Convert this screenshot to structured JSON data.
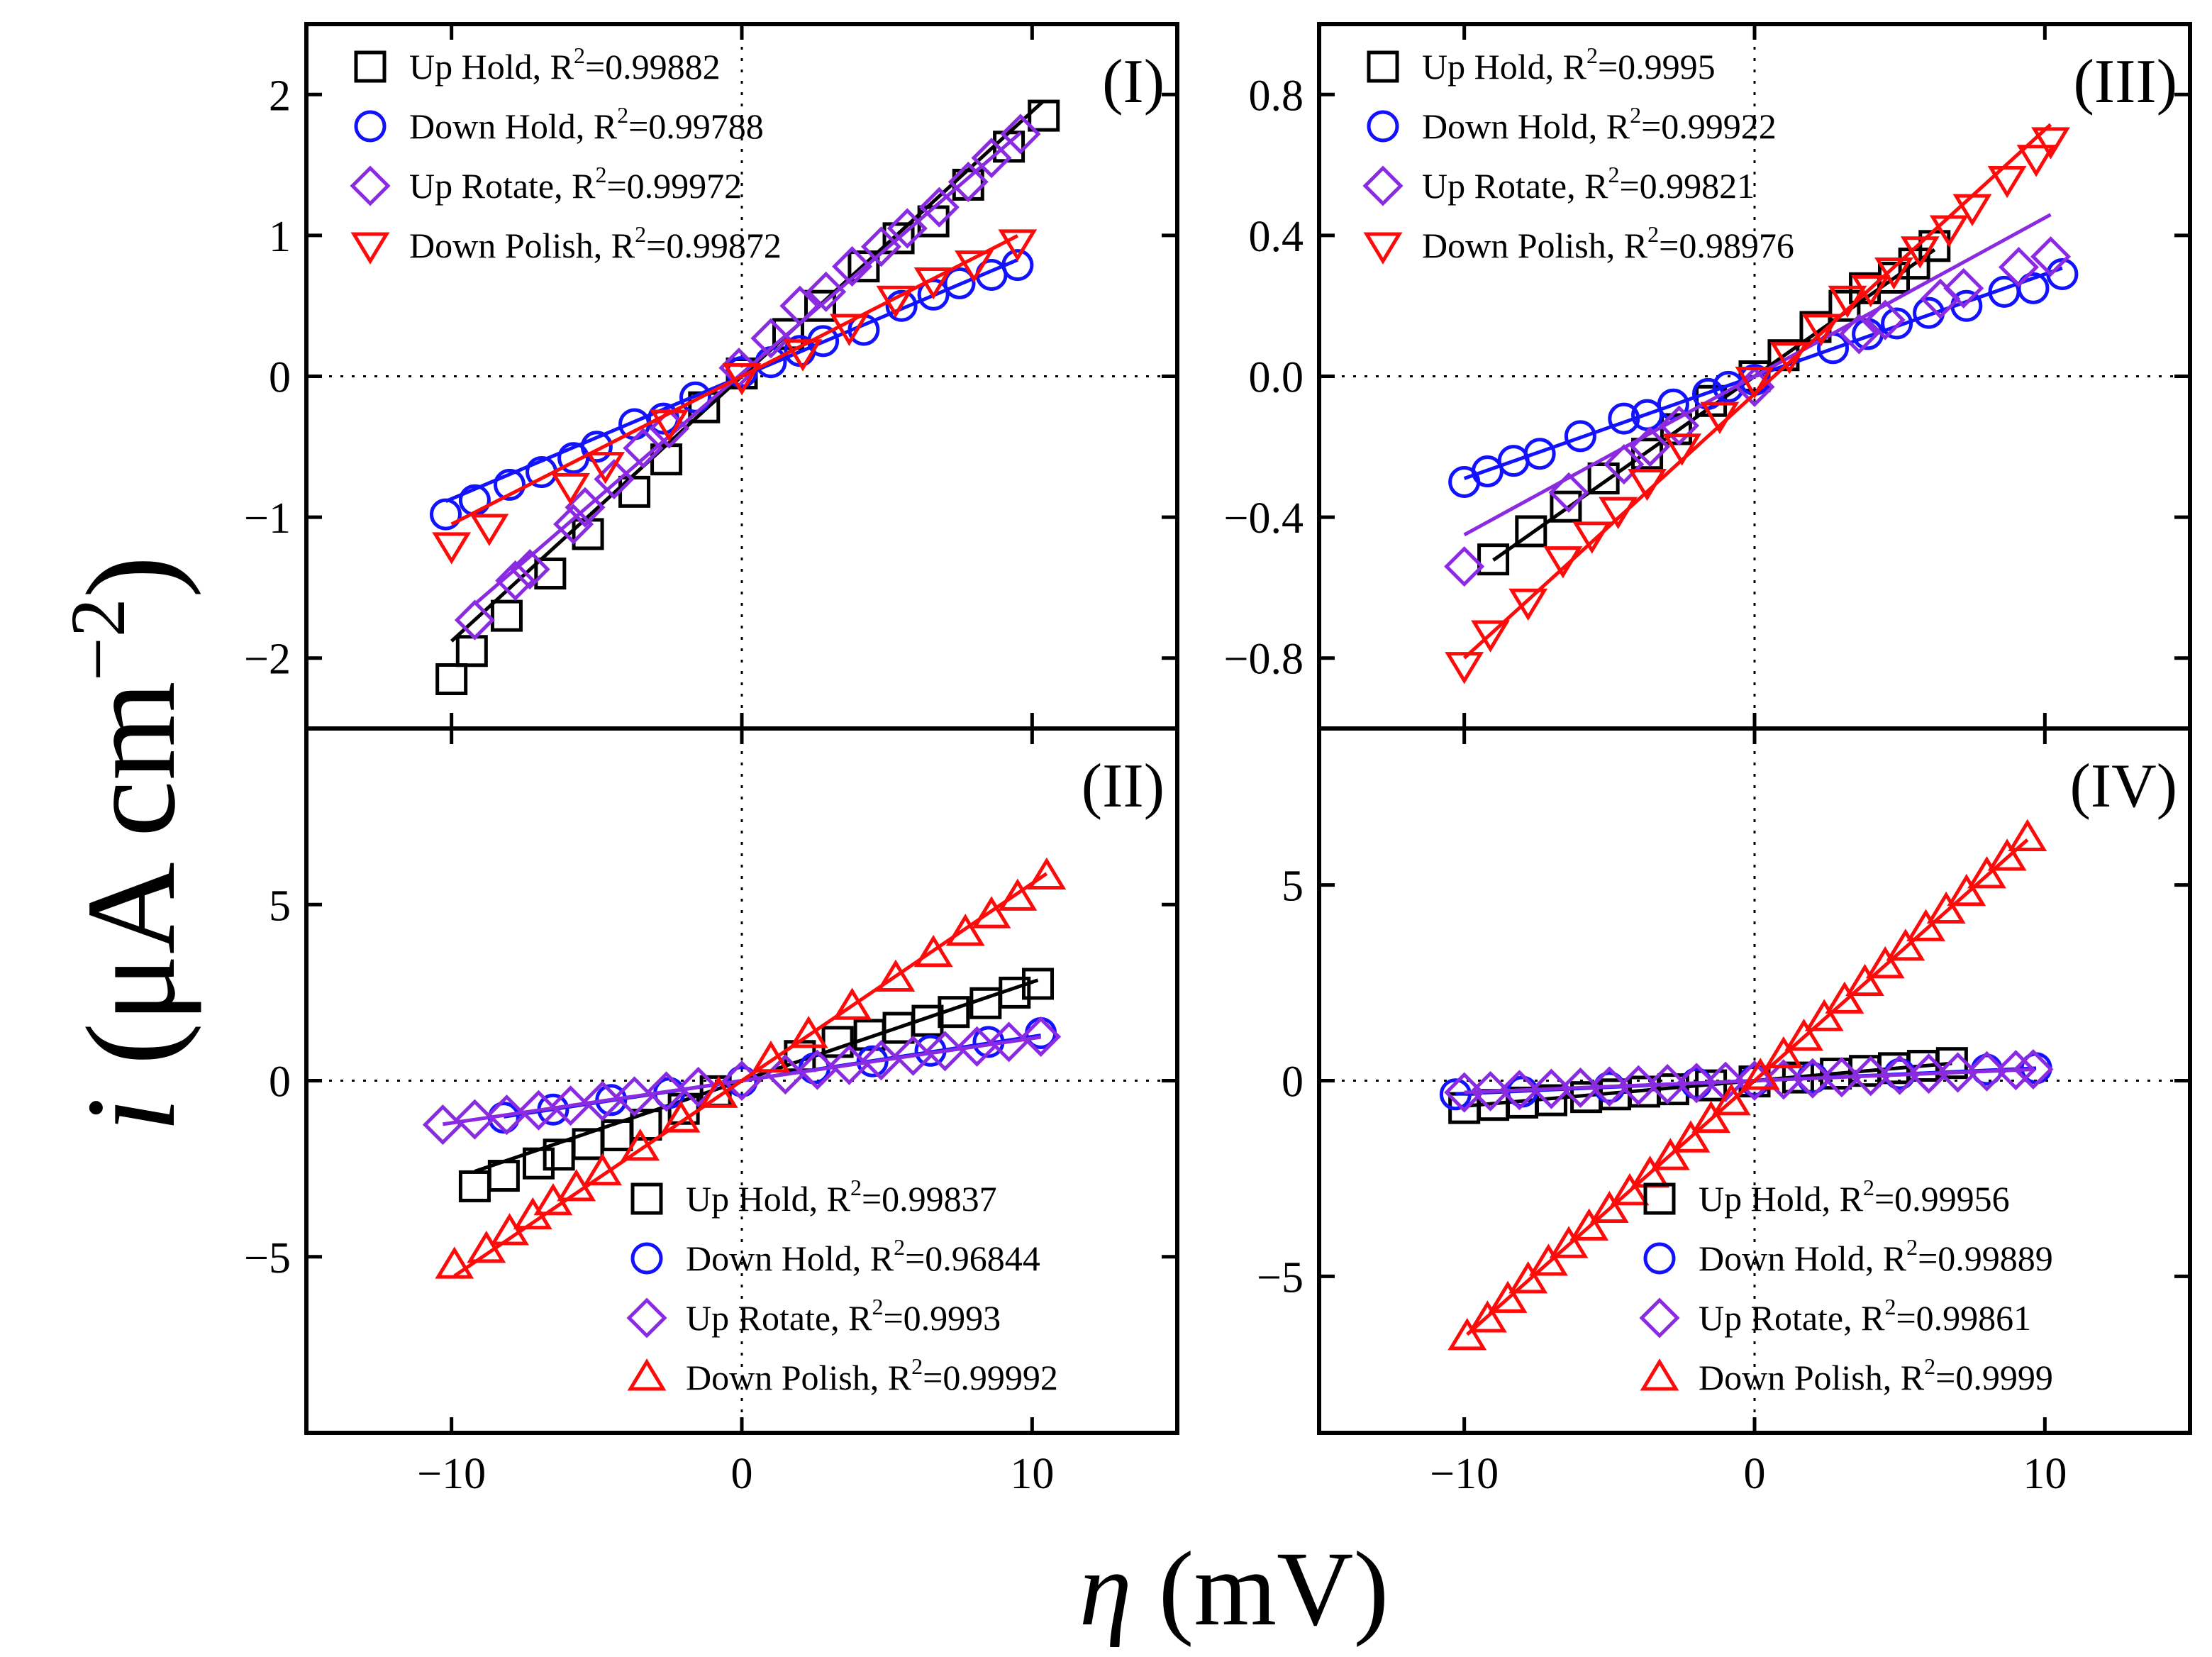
{
  "figure": {
    "ylabel_italic": "i",
    "ylabel_rest": " (μA cm",
    "ylabel_sup": "−2",
    "ylabel_close": ")",
    "xlabel_italic": "η",
    "xlabel_rest": " (mV)"
  },
  "colors": {
    "Up Hold": "#000000",
    "Down Hold": "#1212ff",
    "Up Rotate": "#8a2be2",
    "Down Polish": "#ff0a0a"
  },
  "chart_data": [
    {
      "type": "scatter",
      "panel_label": "(I)",
      "xlim": [
        -15,
        15
      ],
      "ylim": [
        -2.5,
        2.5
      ],
      "xticks": [
        -10,
        0,
        10
      ],
      "xtick_labels": [
        "−10",
        "0",
        "10"
      ],
      "yticks": [
        -2,
        -1,
        0,
        1,
        2
      ],
      "ytick_labels": [
        "−2",
        "−1",
        "0",
        "1",
        "2"
      ],
      "legend_position": "top-left",
      "series": [
        {
          "name": "Up Hold",
          "r2_prefix": "Up Hold, R",
          "r2_value": "=0.99882",
          "marker": "square",
          "color": "#000000",
          "x": [
            -10,
            -9.3,
            -8.1,
            -6.6,
            -5.3,
            -3.7,
            -2.6,
            -1.3,
            0,
            1.6,
            2.7,
            4.2,
            5.4,
            6.6,
            7.8,
            9.2,
            10.4
          ],
          "y": [
            -2.15,
            -1.95,
            -1.7,
            -1.4,
            -1.12,
            -0.82,
            -0.59,
            -0.22,
            0.02,
            0.3,
            0.5,
            0.78,
            0.98,
            1.1,
            1.36,
            1.63,
            1.85
          ],
          "fit_slope": 0.188,
          "fit_intercept": 0.0
        },
        {
          "name": "Down Hold",
          "r2_prefix": "Down Hold, R",
          "r2_value": "=0.99788",
          "marker": "circle",
          "color": "#1212ff",
          "x": [
            -10.2,
            -9.2,
            -8,
            -6.9,
            -5.8,
            -5,
            -3.7,
            -2.7,
            -1.6,
            0,
            1,
            2,
            2.8,
            4.2,
            5.5,
            6.6,
            7.5,
            8.6,
            9.5
          ],
          "y": [
            -0.98,
            -0.88,
            -0.77,
            -0.68,
            -0.58,
            -0.5,
            -0.34,
            -0.3,
            -0.15,
            0.03,
            0.1,
            0.18,
            0.25,
            0.33,
            0.5,
            0.58,
            0.66,
            0.72,
            0.79
          ],
          "fit_slope": 0.087,
          "fit_intercept": 0.0
        },
        {
          "name": "Up Rotate",
          "r2_prefix": "Up Rotate, R",
          "r2_value": "=0.99972",
          "marker": "diamond",
          "color": "#8a2be2",
          "x": [
            -9.2,
            -7.8,
            -7.3,
            -5.8,
            -5.4,
            -4.4,
            -3.4,
            -2.5,
            -0.1,
            1,
            2,
            2.9,
            3.8,
            4.8,
            5.7,
            6.8,
            7.8,
            8.6,
            9.6
          ],
          "y": [
            -1.73,
            -1.45,
            -1.37,
            -1.05,
            -0.93,
            -0.73,
            -0.51,
            -0.37,
            0.06,
            0.27,
            0.5,
            0.6,
            0.78,
            0.92,
            1.05,
            1.2,
            1.38,
            1.55,
            1.72
          ],
          "fit_slope": 0.178,
          "fit_intercept": 0.02
        },
        {
          "name": "Down Polish",
          "r2_prefix": "Down Polish, R",
          "r2_value": "=0.99872",
          "marker": "triangle-down",
          "color": "#ff0a0a",
          "x": [
            -10,
            -8.7,
            -5.9,
            -4.7,
            -2.5,
            0,
            2.1,
            3.7,
            5.3,
            6.6,
            8,
            9.5
          ],
          "y": [
            -1.2,
            -1.07,
            -0.78,
            -0.63,
            -0.33,
            0.0,
            0.17,
            0.35,
            0.55,
            0.68,
            0.8,
            0.95
          ],
          "fit_slope": 0.105,
          "fit_intercept": 0.0
        }
      ]
    },
    {
      "type": "scatter",
      "panel_label": "(II)",
      "xlim": [
        -15,
        15
      ],
      "ylim": [
        -10,
        10
      ],
      "xticks": [
        -10,
        0,
        10
      ],
      "xtick_labels": [
        "−10",
        "0",
        "10"
      ],
      "yticks": [
        -5,
        0,
        5
      ],
      "ytick_labels": [
        "−5",
        "0",
        "5"
      ],
      "legend_position": "bottom-right",
      "series": [
        {
          "name": "Up Hold",
          "r2_prefix": "Up Hold, R",
          "r2_value": "=0.99837",
          "marker": "square",
          "color": "#000000",
          "x": [
            -9.2,
            -8.2,
            -7,
            -6.3,
            -5.3,
            -4.3,
            -3.3,
            -2,
            -0.9,
            2,
            3.3,
            4.4,
            5.4,
            6.4,
            7.3,
            8.4,
            9.4,
            10.2
          ],
          "y": [
            -3.0,
            -2.7,
            -2.35,
            -2.1,
            -1.8,
            -1.55,
            -1.25,
            -0.8,
            -0.3,
            0.7,
            1.1,
            1.3,
            1.5,
            1.7,
            1.95,
            2.2,
            2.5,
            2.75
          ],
          "fit_slope": 0.28,
          "fit_intercept": 0.0
        },
        {
          "name": "Down Hold",
          "r2_prefix": "Down Hold, R",
          "r2_value": "=0.96844",
          "marker": "circle",
          "color": "#1212ff",
          "x": [
            -8.2,
            -6.5,
            -4.5,
            -2.5,
            0,
            2.5,
            4.5,
            6.5,
            8.5,
            10.3
          ],
          "y": [
            -1.05,
            -0.82,
            -0.55,
            -0.35,
            -0.02,
            0.35,
            0.55,
            0.85,
            1.1,
            1.35
          ],
          "fit_slope": 0.125,
          "fit_intercept": 0.0
        },
        {
          "name": "Up Rotate",
          "r2_prefix": "Up Rotate, R",
          "r2_value": "=0.9993",
          "marker": "diamond",
          "color": "#8a2be2",
          "x": [
            -10.3,
            -9.2,
            -8.1,
            -7,
            -5.9,
            -4.8,
            -3.7,
            -2.6,
            -1.5,
            0,
            1.5,
            2.6,
            3.7,
            4.8,
            5.9,
            7,
            8.1,
            9.2,
            10.3
          ],
          "y": [
            -1.25,
            -1.1,
            -0.97,
            -0.84,
            -0.71,
            -0.58,
            -0.45,
            -0.31,
            -0.18,
            0.0,
            0.18,
            0.31,
            0.45,
            0.58,
            0.71,
            0.84,
            0.97,
            1.1,
            1.25
          ],
          "fit_slope": 0.12,
          "fit_intercept": 0.0
        },
        {
          "name": "Down Polish",
          "r2_prefix": "Down Polish, R",
          "r2_value": "=0.99992",
          "marker": "triangle-up",
          "color": "#ff0a0a",
          "x": [
            -9.9,
            -8.8,
            -8,
            -7.2,
            -6.5,
            -5.7,
            -4.8,
            -3.5,
            -2.1,
            -0.8,
            1,
            2.3,
            3.8,
            5.3,
            6.6,
            7.7,
            8.6,
            9.5,
            10.5
          ],
          "y": [
            -5.25,
            -4.8,
            -4.3,
            -3.85,
            -3.45,
            -3.05,
            -2.6,
            -1.9,
            -1.1,
            -0.4,
            0.6,
            1.3,
            2.1,
            2.9,
            3.6,
            4.2,
            4.7,
            5.2,
            5.8
          ],
          "fit_slope": 0.56,
          "fit_intercept": 0.0
        }
      ]
    },
    {
      "type": "scatter",
      "panel_label": "(III)",
      "xlim": [
        -15,
        15
      ],
      "ylim": [
        -1.0,
        1.0
      ],
      "xticks": [
        -10,
        0,
        10
      ],
      "xtick_labels": [
        "−10",
        "0",
        "10"
      ],
      "yticks": [
        -0.8,
        -0.4,
        0.0,
        0.4,
        0.8
      ],
      "ytick_labels": [
        "−0.8",
        "−0.4",
        "0.0",
        "0.4",
        "0.8"
      ],
      "legend_position": "top-left",
      "series": [
        {
          "name": "Up Hold",
          "r2_prefix": "Up Hold, R",
          "r2_value": "=0.9995",
          "marker": "square",
          "color": "#000000",
          "x": [
            -9,
            -7.7,
            -6.5,
            -5.2,
            -3.7,
            -2.7,
            -1.5,
            0,
            1,
            2.1,
            3.1,
            3.8,
            4.8,
            5.5,
            6.2
          ],
          "y": [
            -0.52,
            -0.44,
            -0.37,
            -0.29,
            -0.22,
            -0.15,
            -0.07,
            0.0,
            0.06,
            0.14,
            0.2,
            0.25,
            0.28,
            0.32,
            0.37
          ],
          "fit_slope": 0.058,
          "fit_intercept": 0.0
        },
        {
          "name": "Down Hold",
          "r2_prefix": "Down Hold, R",
          "r2_value": "=0.99922",
          "marker": "circle",
          "color": "#1212ff",
          "x": [
            -10,
            -9.2,
            -8.3,
            -7.4,
            -6,
            -4.5,
            -3.7,
            -2.8,
            -1.6,
            -0.9,
            0,
            2.7,
            3.9,
            4.9,
            6,
            7.3,
            8.6,
            9.6,
            10.6
          ],
          "y": [
            -0.3,
            -0.27,
            -0.24,
            -0.22,
            -0.17,
            -0.12,
            -0.11,
            -0.08,
            -0.05,
            -0.03,
            -0.01,
            0.08,
            0.12,
            0.15,
            0.18,
            0.2,
            0.24,
            0.25,
            0.29
          ],
          "fit_slope": 0.029,
          "fit_intercept": 0.0
        },
        {
          "name": "Up Rotate",
          "r2_prefix": "Up Rotate, R",
          "r2_value": "=0.99821",
          "marker": "diamond",
          "color": "#8a2be2",
          "x": [
            -10,
            -6.4,
            -4.5,
            -3.6,
            -2.6,
            0,
            3.6,
            4.5,
            6.4,
            7.2,
            9.1,
            10.2
          ],
          "y": [
            -0.54,
            -0.33,
            -0.25,
            -0.2,
            -0.14,
            -0.03,
            0.12,
            0.16,
            0.22,
            0.25,
            0.31,
            0.34
          ],
          "fit_slope": 0.045,
          "fit_intercept": 0.0
        },
        {
          "name": "Down Polish",
          "r2_prefix": "Down Polish, R",
          "r2_value": "=0.98976",
          "marker": "triangle-down",
          "color": "#ff0a0a",
          "x": [
            -10,
            -9.1,
            -7.8,
            -6.6,
            -5.6,
            -4.7,
            -3.7,
            -2.5,
            -1.2,
            0,
            1.2,
            2.3,
            3.2,
            4,
            4.8,
            5.7,
            6.7,
            7.5,
            8.7,
            9.7,
            10.2
          ],
          "y": [
            -0.82,
            -0.73,
            -0.64,
            -0.52,
            -0.45,
            -0.38,
            -0.3,
            -0.2,
            -0.11,
            -0.01,
            0.06,
            0.14,
            0.22,
            0.25,
            0.3,
            0.36,
            0.42,
            0.48,
            0.56,
            0.62,
            0.67
          ],
          "fit_slope": 0.075,
          "fit_intercept": -0.05
        }
      ]
    },
    {
      "type": "scatter",
      "panel_label": "(IV)",
      "xlim": [
        -15,
        15
      ],
      "ylim": [
        -9,
        9
      ],
      "xticks": [
        -10,
        0,
        10
      ],
      "xtick_labels": [
        "−10",
        "0",
        "10"
      ],
      "yticks": [
        -5,
        0,
        5
      ],
      "ytick_labels": [
        "−5",
        "0",
        "5"
      ],
      "legend_position": "bottom-right",
      "series": [
        {
          "name": "Up Hold",
          "r2_prefix": "Up Hold, R",
          "r2_value": "=0.99956",
          "marker": "square",
          "color": "#000000",
          "x": [
            -10,
            -9,
            -8,
            -7,
            -5.8,
            -4.8,
            -3.8,
            -2.8,
            -1.5,
            0,
            1.5,
            2.8,
            3.8,
            4.8,
            5.8,
            6.8
          ],
          "y": [
            -0.7,
            -0.62,
            -0.56,
            -0.5,
            -0.42,
            -0.35,
            -0.28,
            -0.22,
            -0.12,
            -0.02,
            0.08,
            0.18,
            0.25,
            0.32,
            0.38,
            0.45
          ],
          "fit_slope": 0.065,
          "fit_intercept": 0.0
        },
        {
          "name": "Down Hold",
          "r2_prefix": "Down Hold, R",
          "r2_value": "=0.99889",
          "marker": "circle",
          "color": "#1212ff",
          "x": [
            -10.3,
            -8,
            -5,
            -2,
            0,
            2,
            5,
            8,
            9.7
          ],
          "y": [
            -0.35,
            -0.28,
            -0.17,
            -0.07,
            0.0,
            0.07,
            0.17,
            0.28,
            0.32
          ],
          "fit_slope": 0.033,
          "fit_intercept": 0.0
        },
        {
          "name": "Up Rotate",
          "r2_prefix": "Up Rotate, R",
          "r2_value": "=0.99861",
          "marker": "diamond",
          "color": "#8a2be2",
          "x": [
            -10,
            -9.1,
            -8.1,
            -7,
            -6,
            -5,
            -4,
            -3,
            -2,
            -1,
            0,
            1,
            2,
            3,
            4,
            5,
            6,
            7,
            8,
            9,
            9.6
          ],
          "y": [
            -0.3,
            -0.27,
            -0.24,
            -0.21,
            -0.18,
            -0.15,
            -0.12,
            -0.09,
            -0.06,
            -0.03,
            0.0,
            0.03,
            0.06,
            0.09,
            0.12,
            0.15,
            0.18,
            0.21,
            0.24,
            0.27,
            0.29
          ],
          "fit_slope": 0.03,
          "fit_intercept": 0.0
        },
        {
          "name": "Down Polish",
          "r2_prefix": "Down Polish, R",
          "r2_value": "=0.9999",
          "marker": "triangle-up",
          "color": "#ff0a0a",
          "x": [
            -9.9,
            -9.2,
            -8.5,
            -7.8,
            -7.1,
            -6.4,
            -5.7,
            -5,
            -4.3,
            -3.6,
            -2.9,
            -2.2,
            -1.5,
            -0.8,
            0.2,
            1,
            1.7,
            2.4,
            3.1,
            3.8,
            4.5,
            5.2,
            5.9,
            6.6,
            7.3,
            8,
            8.7,
            9.4
          ],
          "y": [
            -6.55,
            -6.1,
            -5.6,
            -5.1,
            -4.65,
            -4.2,
            -3.75,
            -3.3,
            -2.85,
            -2.4,
            -1.95,
            -1.5,
            -1.0,
            -0.55,
            0.1,
            0.65,
            1.1,
            1.6,
            2.05,
            2.5,
            2.95,
            3.4,
            3.9,
            4.35,
            4.8,
            5.25,
            5.7,
            6.2
          ],
          "fit_slope": 0.655,
          "fit_intercept": 0.0
        }
      ]
    }
  ]
}
